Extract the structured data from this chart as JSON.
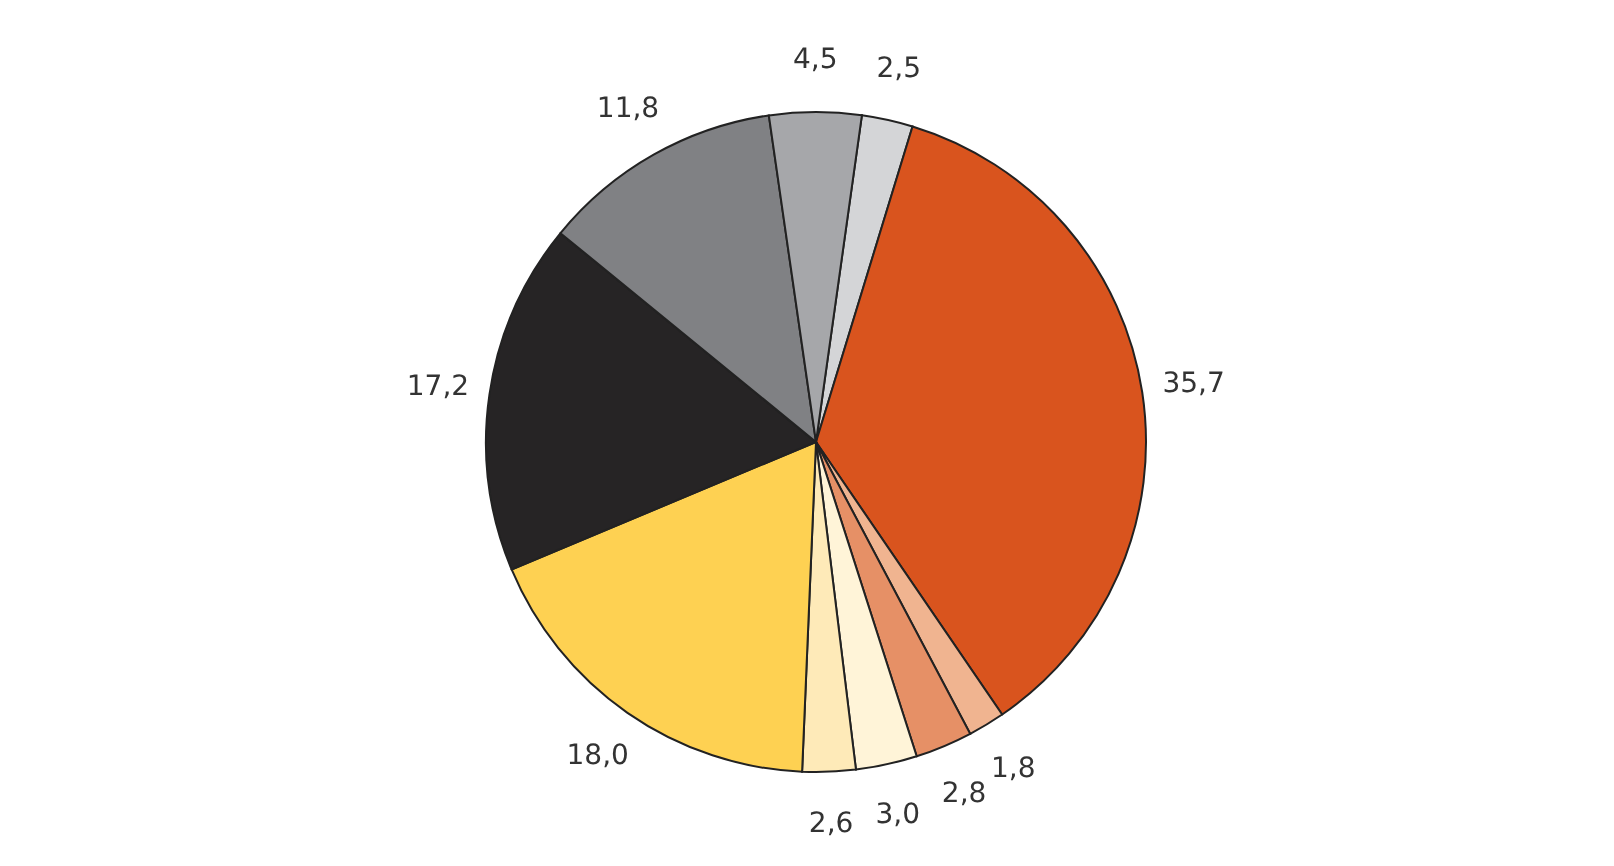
{
  "chart_data": {
    "type": "pie",
    "categories": [
      null,
      null,
      null,
      null,
      null,
      null,
      null,
      null,
      null,
      null
    ],
    "values": [
      2.5,
      35.7,
      1.8,
      2.8,
      3.0,
      2.6,
      18.0,
      17.2,
      11.8,
      4.5
    ],
    "value_labels": [
      "2,5",
      "35,7",
      "1,8",
      "2,8",
      "3,0",
      "2,6",
      "18,0",
      "17,2",
      "11,8",
      "4,5"
    ],
    "colors": [
      "#d4d5d7",
      "#d9541e",
      "#f0b490",
      "#e69066",
      "#fff4d8",
      "#feeab8",
      "#fed152",
      "#262425",
      "#808184",
      "#a6a7aa"
    ],
    "legend": false
  }
}
